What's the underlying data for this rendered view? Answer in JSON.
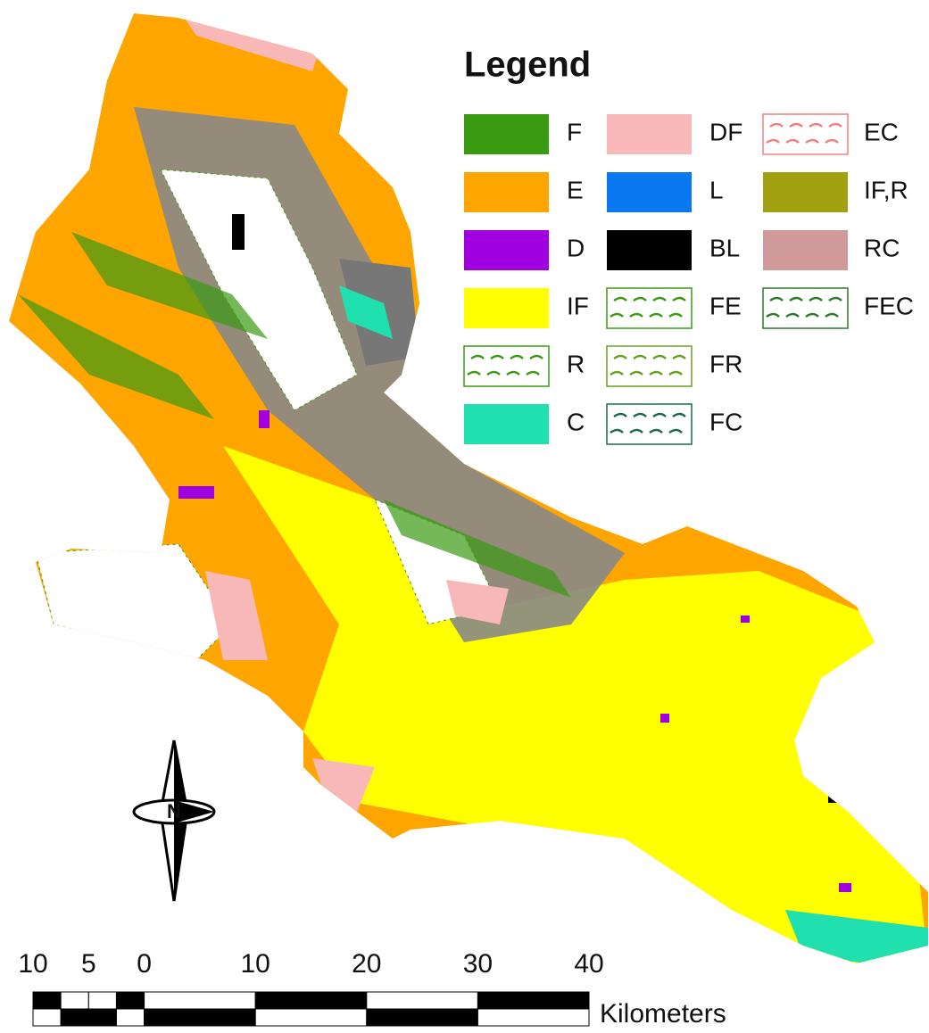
{
  "legend": {
    "title": "Legend",
    "entries": [
      {
        "label": "F",
        "color": "#3a9a12"
      },
      {
        "label": "E",
        "color": "#ffa500"
      },
      {
        "label": "D",
        "color": "#a000e0"
      },
      {
        "label": "IF",
        "color": "#ffff00"
      },
      {
        "label": "R",
        "color": "#3a9a12",
        "hatched": true
      },
      {
        "label": "C",
        "color": "#20e0b0"
      },
      {
        "label": "DF",
        "color": "#f8b8b8"
      },
      {
        "label": "L",
        "color": "#0a78f0"
      },
      {
        "label": "BL",
        "color": "#000000"
      },
      {
        "label": "FE",
        "color": "#3a9a12",
        "hatched": true
      },
      {
        "label": "FR",
        "color": "#6aa020",
        "hatched": true
      },
      {
        "label": "FC",
        "color": "#1a6a4a",
        "hatched": true
      },
      {
        "label": "EC",
        "color": "#f08080",
        "hatched": true
      },
      {
        "label": "IF,R",
        "color": "#a0a010"
      },
      {
        "label": "RC",
        "color": "#d09a9a"
      },
      {
        "label": "FEC",
        "color": "#2a7a2a",
        "hatched": true
      }
    ]
  },
  "north_arrow": "N",
  "scale_bar": {
    "ticks": [
      {
        "value": -10,
        "label": "10"
      },
      {
        "value": -5,
        "label": "5"
      },
      0,
      10,
      20,
      30,
      40
    ],
    "unit": "Kilometers"
  }
}
